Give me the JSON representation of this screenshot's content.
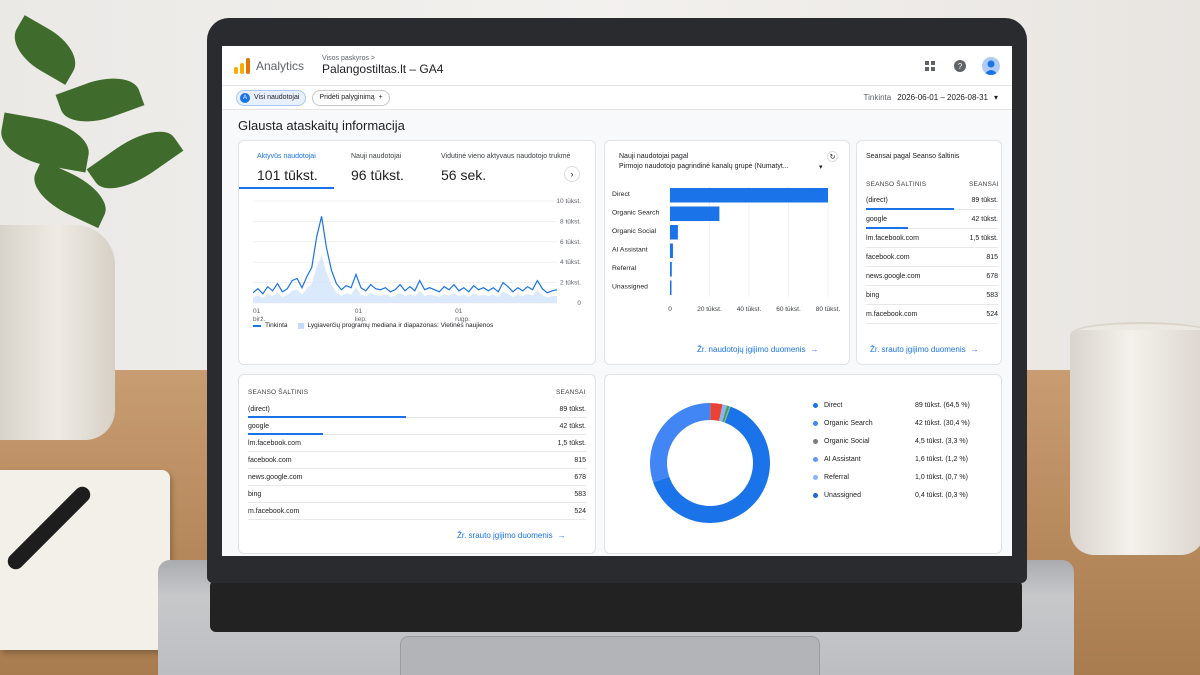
{
  "header": {
    "brand": "Analytics",
    "breadcrumb": "Visos paskyros >",
    "property": "Palangostiltas.lt – GA4"
  },
  "filters": {
    "segment_chip": "Visi naudotojai",
    "add_compare": "Pridėti palyginimą",
    "date_label": "Tinkinta",
    "date_range": "2026-06-01 – 2026-08-31"
  },
  "page_title": "Glausta ataskaitų informacija",
  "overview": {
    "tabs": [
      {
        "label": "Aktyvūs naudotojai",
        "value": "101 tūkst."
      },
      {
        "label": "Nauji naudotojai",
        "value": "96 tūkst."
      },
      {
        "label": "Vidutinė vieno aktyvaus naudotojo trukmė",
        "value": "56 sek."
      }
    ],
    "y_ticks": [
      "10 tūkst.",
      "8 tūkst.",
      "6 tūkst.",
      "4 tūkst.",
      "2 tūkst.",
      "0"
    ],
    "x_ticks": [
      {
        "day": "01",
        "month": "birž."
      },
      {
        "day": "01",
        "month": "liep."
      },
      {
        "day": "01",
        "month": "rugp."
      }
    ],
    "legend_line": "Tinkinta",
    "legend_band": "Lygiaverčių programų mediana ir diapazonas: Vietinės naujienos"
  },
  "channels": {
    "title": "Nauji naudotojai pagal",
    "subtitle": "Pirmojo naudotojo pagrindinė kanalų grupė (Numatyt...",
    "x_ticks": [
      "0",
      "20 tūkst.",
      "40 tūkst.",
      "60 tūkst.",
      "80 tūkst."
    ],
    "link": "Žr. naudotojų įgijimo duomenis"
  },
  "sources_card": {
    "title": "Seansai pagal Seanso šaltinis",
    "col1": "SEANSO ŠALTINIS",
    "col2": "SEANSAI",
    "rows": [
      {
        "name": "(direct)",
        "value": "89 tūkst."
      },
      {
        "name": "google",
        "value": "42 tūkst."
      },
      {
        "name": "lm.facebook.com",
        "value": "1,5 tūkst."
      },
      {
        "name": "facebook.com",
        "value": "815"
      },
      {
        "name": "news.google.com",
        "value": "678"
      },
      {
        "name": "bing",
        "value": "583"
      },
      {
        "name": "m.facebook.com",
        "value": "524"
      }
    ],
    "link": "Žr. srauto įgijimo duomenis"
  },
  "sources_table": {
    "col1": "SEANSO ŠALTINIS",
    "col2": "SEANSAI",
    "rows": [
      {
        "name": "(direct)",
        "value": "89 tūkst."
      },
      {
        "name": "google",
        "value": "42 tūkst."
      },
      {
        "name": "lm.facebook.com",
        "value": "1,5 tūkst."
      },
      {
        "name": "facebook.com",
        "value": "815"
      },
      {
        "name": "news.google.com",
        "value": "678"
      },
      {
        "name": "bing",
        "value": "583"
      },
      {
        "name": "m.facebook.com",
        "value": "524"
      }
    ],
    "link": "Žr. srauto įgijimo duomenis"
  },
  "donut_legend": [
    {
      "name": "Direct",
      "value": "89 tūkst. (64,5 %)",
      "color": "#1a73e8"
    },
    {
      "name": "Organic Search",
      "value": "42 tūkst. (30,4 %)",
      "color": "#4285f4"
    },
    {
      "name": "Organic Social",
      "value": "4,5 tūkst. (3,3 %)",
      "color": "#7b7b7b"
    },
    {
      "name": "AI Assistant",
      "value": "1,6 tūkst. (1,2 %)",
      "color": "#5e97f6"
    },
    {
      "name": "Referral",
      "value": "1,0 tūkst. (0,7 %)",
      "color": "#8ab4f8"
    },
    {
      "name": "Unassigned",
      "value": "0,4 tūkst. (0,3 %)",
      "color": "#1967d2"
    }
  ],
  "chart_data": [
    {
      "type": "line",
      "ylim": [
        0,
        10000
      ],
      "series": [
        {
          "name": "Tinkinta",
          "values": [
            1000,
            1400,
            900,
            1600,
            1200,
            1900,
            1100,
            1400,
            2200,
            2400,
            1500,
            2600,
            3500,
            6500,
            8500,
            5400,
            3200,
            1900,
            1300,
            1700,
            1500,
            2800,
            1500,
            1200,
            1800,
            1400,
            1300,
            1500,
            1100,
            1300,
            1800,
            1200,
            1600,
            1200,
            2200,
            1300,
            1500,
            1300,
            1100,
            1600,
            1300,
            1800,
            1200,
            1500,
            1100,
            1700,
            1300,
            1500,
            1200,
            1500,
            1100,
            2000,
            1600,
            1100,
            1500,
            1200,
            1600,
            1300,
            2200,
            1400,
            1000,
            1200,
            1300
          ]
        }
      ]
    },
    {
      "type": "bar",
      "categories": [
        "Direct",
        "Organic Search",
        "Organic Social",
        "AI Assistant",
        "Referral",
        "Unassigned"
      ],
      "values": [
        80000,
        25000,
        4000,
        1500,
        900,
        400
      ],
      "xlim": [
        0,
        80000
      ]
    },
    {
      "type": "pie",
      "categories": [
        "Direct",
        "Organic Search",
        "Organic Social",
        "AI Assistant",
        "Referral",
        "Unassigned"
      ],
      "values": [
        64.5,
        30.4,
        3.3,
        1.2,
        0.7,
        0.3
      ]
    }
  ]
}
